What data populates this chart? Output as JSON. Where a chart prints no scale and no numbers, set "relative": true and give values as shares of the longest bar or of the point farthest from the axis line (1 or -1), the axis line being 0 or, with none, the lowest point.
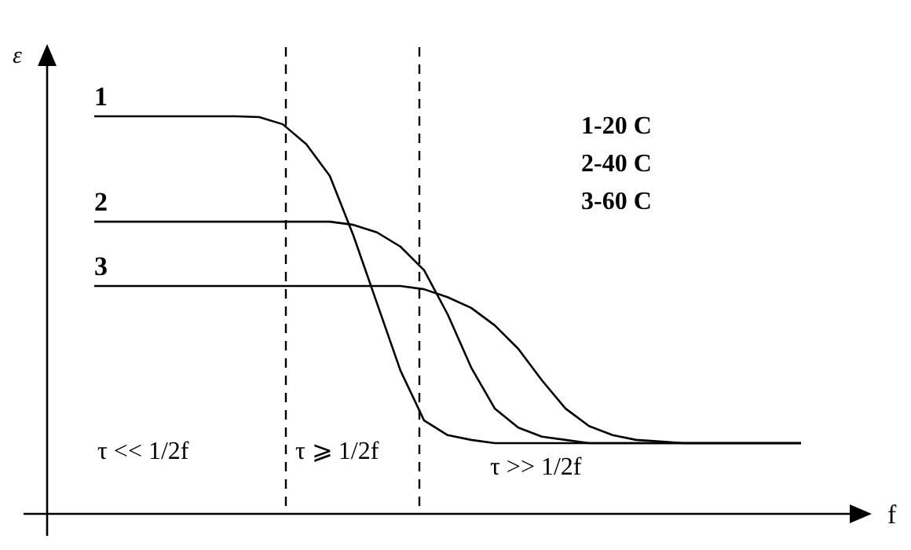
{
  "chart_data": {
    "type": "line",
    "relative": true,
    "xlabel": "f",
    "ylabel": "ε",
    "marker": "none",
    "line_style": "solid",
    "categories": [
      null,
      null,
      null,
      null,
      null,
      null,
      null,
      null,
      null,
      null,
      null,
      null,
      null,
      null,
      null,
      null,
      null,
      null,
      null,
      null,
      null,
      null,
      null,
      null,
      null,
      null,
      null,
      null,
      null,
      null,
      null
    ],
    "series": [
      {
        "name": "1",
        "color": "#000000",
        "values": [
          1,
          1,
          1,
          1,
          1,
          1,
          1,
          0.998,
          0.98,
          0.93,
          0.85,
          0.7,
          0.53,
          0.36,
          0.235,
          0.198,
          0.186,
          0.178,
          0.178,
          0.178,
          0.178,
          0.178,
          0.178,
          0.178,
          0.178,
          0.178,
          0.178,
          0.178,
          0.178,
          0.178,
          0.178
        ]
      },
      {
        "name": "2",
        "color": "#000000",
        "values": [
          0.735,
          0.735,
          0.735,
          0.735,
          0.735,
          0.735,
          0.735,
          0.735,
          0.735,
          0.735,
          0.735,
          0.727,
          0.708,
          0.672,
          0.613,
          0.502,
          0.368,
          0.265,
          0.217,
          0.194,
          0.186,
          0.178,
          0.178,
          0.178,
          0.178,
          0.178,
          0.178,
          0.178,
          0.178,
          0.178,
          0.178
        ]
      },
      {
        "name": "3",
        "color": "#000000",
        "values": [
          0.573,
          0.573,
          0.573,
          0.573,
          0.573,
          0.573,
          0.573,
          0.573,
          0.573,
          0.573,
          0.573,
          0.573,
          0.573,
          0.573,
          0.565,
          0.545,
          0.518,
          0.474,
          0.415,
          0.336,
          0.265,
          0.221,
          0.198,
          0.186,
          0.182,
          0.178,
          0.178,
          0.178,
          0.178,
          0.178,
          0.178
        ]
      }
    ],
    "annotations": [
      "1-20 C",
      "2-40 C",
      "3-60 C",
      "τ << 1/2f",
      "τ ⩾ 1/2f",
      "τ >> 1/2f"
    ]
  }
}
